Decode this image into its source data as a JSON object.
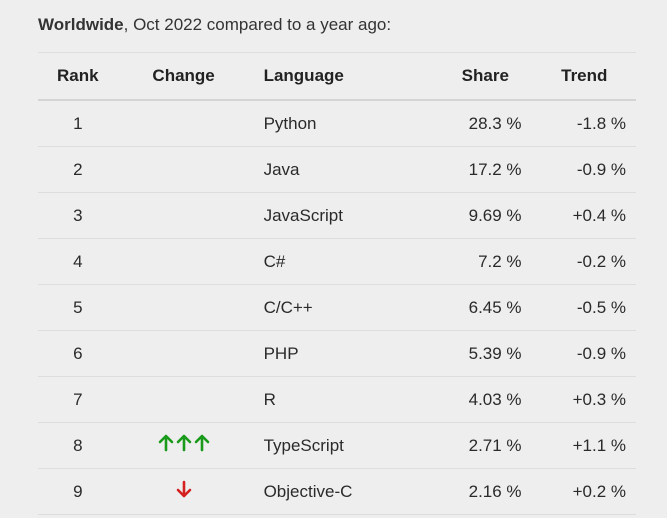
{
  "caption": {
    "bold": "Worldwide",
    "rest": ", Oct 2022 compared to a year ago:"
  },
  "table": {
    "headers": {
      "rank": "Rank",
      "change": "Change",
      "language": "Language",
      "share": "Share",
      "trend": "Trend"
    },
    "rows": [
      {
        "rank": "1",
        "change": "",
        "language": "Python",
        "share": "28.3 %",
        "trend": "-1.8 %"
      },
      {
        "rank": "2",
        "change": "",
        "language": "Java",
        "share": "17.2 %",
        "trend": "-0.9 %"
      },
      {
        "rank": "3",
        "change": "",
        "language": "JavaScript",
        "share": "9.69 %",
        "trend": "+0.4 %"
      },
      {
        "rank": "4",
        "change": "",
        "language": "C#",
        "share": "7.2 %",
        "trend": "-0.2 %"
      },
      {
        "rank": "5",
        "change": "",
        "language": "C/C++",
        "share": "6.45 %",
        "trend": "-0.5 %"
      },
      {
        "rank": "6",
        "change": "",
        "language": "PHP",
        "share": "5.39 %",
        "trend": "-0.9 %"
      },
      {
        "rank": "7",
        "change": "",
        "language": "R",
        "share": "4.03 %",
        "trend": "+0.3 %"
      },
      {
        "rank": "8",
        "change": "up-3",
        "language": "TypeScript",
        "share": "2.71 %",
        "trend": "+1.1 %"
      },
      {
        "rank": "9",
        "change": "down-1",
        "language": "Objective-C",
        "share": "2.16 %",
        "trend": "+0.2 %"
      }
    ]
  },
  "icons": {
    "up": "green-up-arrow-icon",
    "down": "red-down-arrow-icon"
  },
  "colors": {
    "up": "#1a9a1a",
    "down": "#d42020",
    "background": "#eeeeee"
  }
}
